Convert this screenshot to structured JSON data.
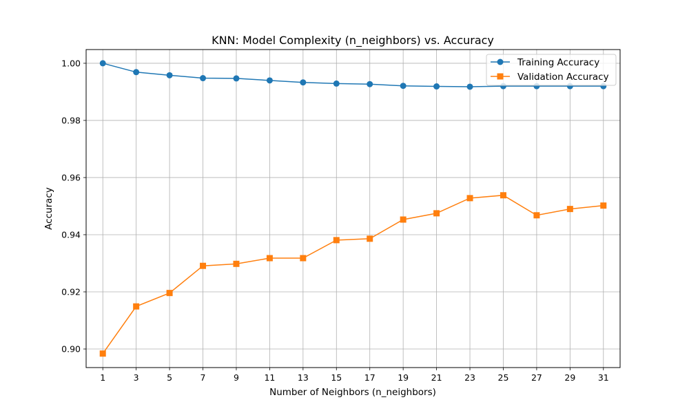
{
  "chart_data": {
    "type": "line",
    "title": "KNN: Model Complexity (n_neighbors) vs. Accuracy",
    "xlabel": "Number of Neighbors (n_neighbors)",
    "ylabel": "Accuracy",
    "x": [
      1,
      3,
      5,
      7,
      9,
      11,
      13,
      15,
      17,
      19,
      21,
      23,
      25,
      27,
      29,
      31
    ],
    "xticks": [
      "1",
      "3",
      "5",
      "7",
      "9",
      "11",
      "13",
      "15",
      "17",
      "19",
      "21",
      "23",
      "25",
      "27",
      "29",
      "31"
    ],
    "xlim": [
      0,
      32
    ],
    "yticks": [
      "0.90",
      "0.92",
      "0.94",
      "0.96",
      "0.98",
      "1.00"
    ],
    "ylim": [
      0.8935,
      1.0048
    ],
    "grid": true,
    "legend_position": "top-right",
    "series": [
      {
        "name": "Training Accuracy",
        "color": "#1f77b4",
        "marker": "circle",
        "values": [
          1.0,
          0.9969,
          0.9958,
          0.9948,
          0.9947,
          0.994,
          0.9933,
          0.9929,
          0.9927,
          0.9921,
          0.9919,
          0.9918,
          0.992,
          0.992,
          0.992,
          0.992
        ]
      },
      {
        "name": "Validation Accuracy",
        "color": "#ff7f0e",
        "marker": "square",
        "values": [
          0.8984,
          0.9149,
          0.9196,
          0.9291,
          0.9298,
          0.9318,
          0.9318,
          0.9381,
          0.9386,
          0.9453,
          0.9475,
          0.9528,
          0.9538,
          0.9468,
          0.949,
          0.9502
        ]
      }
    ]
  }
}
